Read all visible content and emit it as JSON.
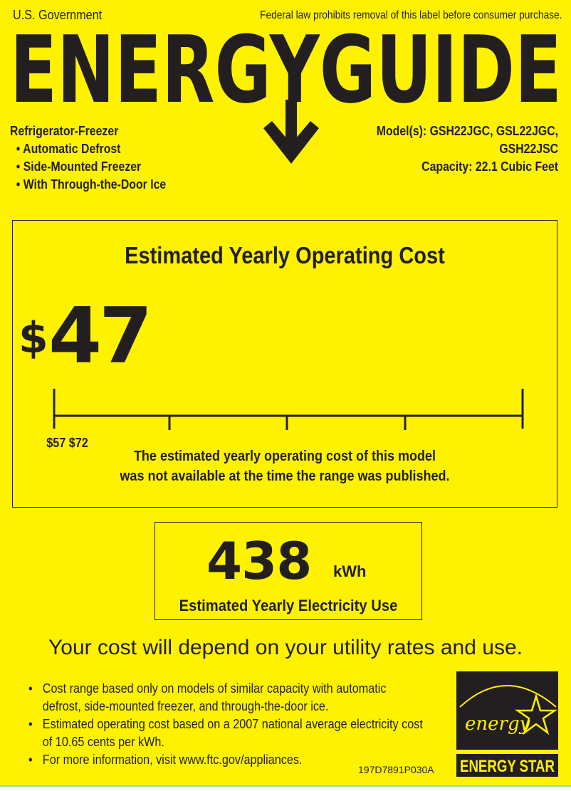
{
  "header": {
    "government": "U.S. Government",
    "law_notice": "Federal law prohibits removal of this label before consumer purchase.",
    "title": "ENERGYGUIDE"
  },
  "product": {
    "type": "Refrigerator-Freezer",
    "features": [
      "• Automatic Defrost",
      "• Side-Mounted Freezer",
      "• With Through-the-Door Ice"
    ]
  },
  "model": {
    "line1": "Model(s): GSH22JGC, GSL22JGC,",
    "line2": "GSH22JSC",
    "capacity": "Capacity: 22.1  Cubic Feet"
  },
  "cost": {
    "title": "Estimated Yearly Operating Cost",
    "currency": "$",
    "amount": "47",
    "range_label": "$57 $72",
    "note_line1": "The estimated yearly operating cost of this model",
    "note_line2": "was not available at the time the range was published."
  },
  "electricity": {
    "value": "438",
    "unit": "kWh",
    "label": "Estimated Yearly Electricity Use"
  },
  "depend": "Your cost will depend on your utility rates and use.",
  "notes": [
    "Cost range based only on models of similar capacity with automatic defrost, side-mounted freezer, and through-the-door ice.",
    "Estimated operating cost based on a 2007 national average electricity cost of 10.65 cents per kWh.",
    "For more information, visit www.ftc.gov/appliances."
  ],
  "label_code": "197D7891P030A",
  "energy_star": {
    "script": "energy",
    "wordmark": "ENERGY STAR"
  },
  "colors": {
    "background": "#fff200",
    "ink": "#231f20"
  }
}
